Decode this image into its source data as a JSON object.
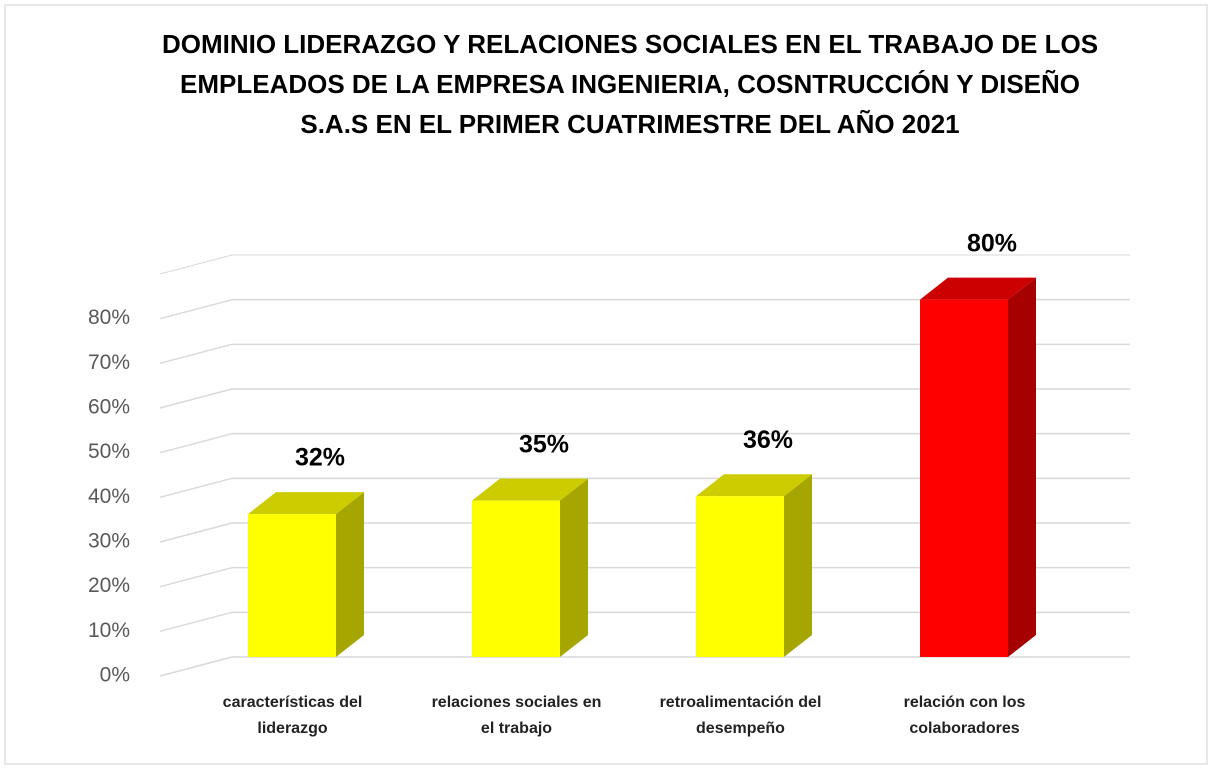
{
  "chart_data": {
    "type": "bar3d",
    "title": "DOMINIO LIDERAZGO Y RELACIONES SOCIALES EN EL TRABAJO DE LOS EMPLEADOS DE LA EMPRESA INGENIERIA, COSNTRUCCIÓN Y DISEÑO S.A.S EN EL PRIMER CUATRIMESTRE DEL AÑO 2021",
    "categories": [
      "características del liderazgo",
      "relaciones sociales en el trabajo",
      "retroalimentación del desempeño",
      "relación con los colaboradores"
    ],
    "values": [
      32,
      35,
      36,
      80
    ],
    "value_labels": [
      "32%",
      "35%",
      "36%",
      "80%"
    ],
    "colors": [
      "#ffff00",
      "#ffff00",
      "#ffff00",
      "#ff0000"
    ],
    "ylim": [
      0,
      90
    ],
    "yticks": [
      {
        "value": 0,
        "label": "0%"
      },
      {
        "value": 10,
        "label": "10%"
      },
      {
        "value": 20,
        "label": "20%"
      },
      {
        "value": 30,
        "label": "30%"
      },
      {
        "value": 40,
        "label": "40%"
      },
      {
        "value": 50,
        "label": "50%"
      },
      {
        "value": 60,
        "label": "60%"
      },
      {
        "value": 70,
        "label": "70%"
      },
      {
        "value": 80,
        "label": "80%"
      }
    ],
    "grid": true
  }
}
